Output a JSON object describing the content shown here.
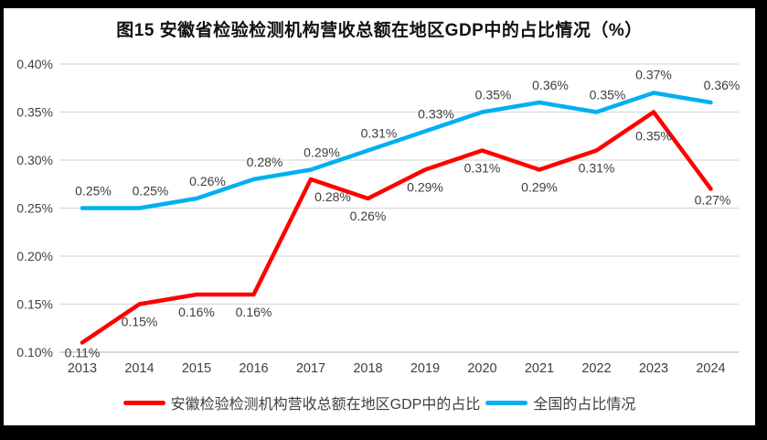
{
  "chart": {
    "title": "图15 安徽省检验检测机构营收总额在地区GDP中的占比情况（%）"
  },
  "colors": {
    "anhui_series": "#FF0000",
    "national_series": "#00B0F0",
    "gridline": "#D9D9D9",
    "axis_line": "#BFBFBF",
    "frame_background": "#000000",
    "panel_background": "#FFFFFF"
  },
  "chart_data": {
    "type": "line",
    "title": "图15 安徽省检验检测机构营收总额在地区GDP中的占比情况（%）",
    "categories": [
      "2013",
      "2014",
      "2015",
      "2016",
      "2017",
      "2018",
      "2019",
      "2020",
      "2021",
      "2022",
      "2023",
      "2024"
    ],
    "unit": "%",
    "series": [
      {
        "name": "安徽检验检测机构营收总额在地区GDP中的占比",
        "color": "#FF0000",
        "values": [
          0.11,
          0.15,
          0.16,
          0.16,
          0.28,
          0.26,
          0.29,
          0.31,
          0.29,
          0.31,
          0.35,
          0.27
        ],
        "labels": [
          "0.11%",
          "0.15%",
          "0.16%",
          "0.16%",
          "0.28%",
          "0.26%",
          "0.29%",
          "0.31%",
          "0.29%",
          "0.31%",
          "0.35%",
          "0.27%"
        ]
      },
      {
        "name": "全国的占比情况",
        "color": "#00B0F0",
        "values": [
          0.25,
          0.25,
          0.26,
          0.28,
          0.29,
          0.31,
          0.33,
          0.35,
          0.36,
          0.35,
          0.37,
          0.36
        ],
        "labels": [
          "0.25%",
          "0.25%",
          "0.26%",
          "0.28%",
          "0.29%",
          "0.31%",
          "0.33%",
          "0.35%",
          "0.36%",
          "0.35%",
          "0.37%",
          "0.36%"
        ]
      }
    ],
    "ylim": [
      0.1,
      0.4
    ],
    "yticks": [
      {
        "value": 0.1,
        "label": "0.10%"
      },
      {
        "value": 0.15,
        "label": "0.15%"
      },
      {
        "value": 0.2,
        "label": "0.20%"
      },
      {
        "value": 0.25,
        "label": "0.25%"
      },
      {
        "value": 0.3,
        "label": "0.30%"
      },
      {
        "value": 0.35,
        "label": "0.35%"
      },
      {
        "value": 0.4,
        "label": "0.40%"
      }
    ],
    "grid": true,
    "legend_position": "bottom",
    "data_labels": true
  }
}
